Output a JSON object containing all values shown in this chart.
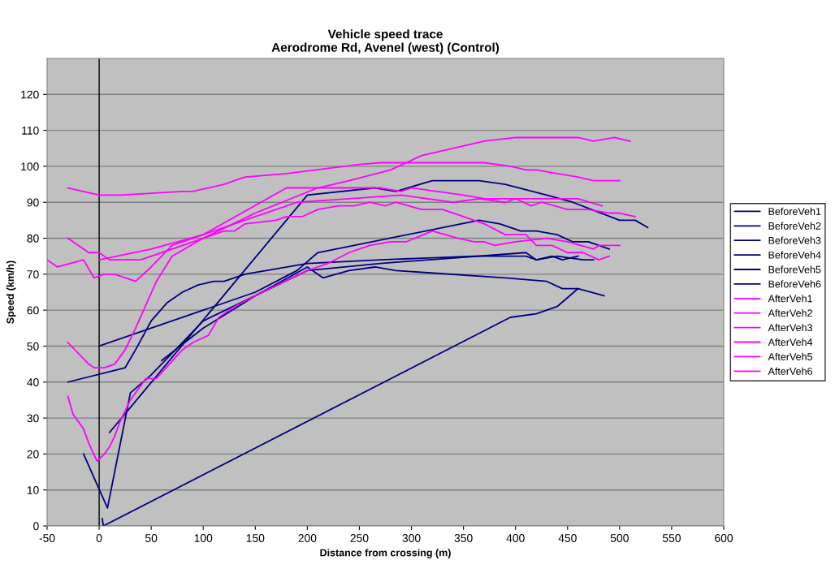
{
  "chart_data": {
    "type": "line",
    "title": "Vehicle speed trace\nAerodrome Rd, Avenel (west) (Control)",
    "xlabel": "Distance from crossing (m)",
    "ylabel": "Speed (km/h)",
    "xlim": [
      -50,
      600
    ],
    "xticks": [
      -50,
      0,
      50,
      100,
      150,
      200,
      250,
      300,
      350,
      400,
      450,
      500,
      550,
      600
    ],
    "ylim": [
      0,
      130
    ],
    "yticks": [
      0,
      10,
      20,
      30,
      40,
      50,
      60,
      70,
      80,
      90,
      100,
      110,
      120
    ],
    "grid": "y",
    "legend": "right",
    "marker": "none",
    "line_style": "solid",
    "ref_lines": [
      {
        "axis": "x",
        "value": 0,
        "color": "#000000"
      }
    ],
    "series": [
      {
        "name": "BeforeVeh1",
        "color": "#000080",
        "x": [
          -15,
          8,
          30,
          50,
          100,
          150,
          200,
          215,
          240,
          265,
          285,
          390,
          430,
          445,
          460,
          485
        ],
        "values": [
          20,
          5,
          37,
          42,
          57,
          64,
          72,
          69,
          71,
          72,
          71,
          69,
          68,
          66,
          66,
          64
        ]
      },
      {
        "name": "BeforeVeh2",
        "color": "#000080",
        "x": [
          3,
          4,
          395,
          420,
          440,
          460
        ],
        "values": [
          2,
          0,
          58,
          59,
          61,
          66
        ]
      },
      {
        "name": "BeforeVeh3",
        "color": "#000080",
        "x": [
          10,
          200,
          265,
          285,
          320,
          365,
          390,
          430,
          455,
          500,
          515,
          527
        ],
        "values": [
          26,
          92,
          94,
          93,
          96,
          96,
          95,
          92,
          90,
          85,
          85,
          83
        ]
      },
      {
        "name": "BeforeVeh4",
        "color": "#000080",
        "x": [
          -30,
          25,
          35,
          50,
          65,
          80,
          95,
          110,
          120,
          140,
          200,
          270,
          360,
          410,
          420,
          440,
          465,
          475
        ],
        "values": [
          40,
          44,
          49,
          57,
          62,
          65,
          67,
          68,
          68,
          70,
          73,
          74,
          75,
          75,
          74,
          75,
          74,
          74
        ]
      },
      {
        "name": "BeforeVeh5",
        "color": "#000080",
        "x": [
          0,
          100,
          150,
          190,
          210,
          365,
          385,
          405,
          420,
          440,
          455,
          470,
          490
        ],
        "values": [
          50,
          60,
          65,
          71,
          76,
          85,
          84,
          82,
          82,
          81,
          79,
          79,
          77
        ]
      },
      {
        "name": "BeforeVeh6",
        "color": "#000080",
        "x": [
          60,
          100,
          150,
          200,
          270,
          410,
          420,
          435,
          445,
          460
        ],
        "values": [
          46,
          55,
          64,
          71,
          73,
          76,
          74,
          75,
          74,
          75
        ]
      },
      {
        "name": "AfterVeh1",
        "color": "#ff00ff",
        "x": [
          -30,
          0,
          20,
          80,
          90,
          120,
          140,
          180,
          250,
          270,
          370,
          395,
          410,
          420,
          440,
          460,
          475,
          500
        ],
        "values": [
          94,
          92,
          92,
          93,
          93,
          95,
          97,
          98,
          100.5,
          101,
          101,
          100,
          99,
          99,
          98,
          97,
          96,
          96
        ]
      },
      {
        "name": "AfterVeh2",
        "color": "#ff00ff",
        "x": [
          -50,
          -40,
          -15,
          -5,
          5,
          15,
          35,
          50,
          70,
          100,
          180,
          270,
          290,
          300,
          350,
          370,
          430,
          460,
          483
        ],
        "values": [
          74,
          72,
          74,
          69,
          70,
          70,
          68,
          72,
          78,
          81,
          94,
          94,
          93,
          94,
          92,
          91,
          91,
          91,
          89
        ]
      },
      {
        "name": "AfterVeh3",
        "color": "#ff00ff",
        "x": [
          -30,
          -10,
          0,
          10,
          40,
          50,
          70,
          100,
          150,
          210,
          240,
          280,
          310,
          370,
          400,
          460,
          475,
          495,
          510
        ],
        "values": [
          80,
          76,
          76,
          74,
          74,
          75,
          77,
          80,
          87,
          94,
          96,
          99,
          103,
          107,
          108,
          108,
          107,
          108,
          107
        ]
      },
      {
        "name": "AfterVeh4",
        "color": "#ff00ff",
        "x": [
          0,
          50,
          100,
          150,
          190,
          240,
          290,
          340,
          365,
          390,
          400,
          415,
          425,
          450,
          470,
          490,
          500,
          515
        ],
        "values": [
          74,
          77,
          81,
          86,
          90,
          91,
          92,
          90,
          91,
          90,
          91,
          89,
          90,
          88,
          88,
          87,
          87,
          86
        ]
      },
      {
        "name": "AfterVeh5",
        "color": "#ff00ff",
        "x": [
          -30,
          -20,
          -10,
          -5,
          5,
          15,
          25,
          35,
          55,
          70,
          100,
          120,
          130,
          140,
          170,
          180,
          195,
          210,
          230,
          245,
          260,
          275,
          285,
          310,
          330,
          350,
          370,
          390,
          410,
          420,
          435,
          450,
          465,
          480,
          490
        ],
        "values": [
          51,
          48,
          45,
          44,
          44,
          45,
          49,
          55,
          68,
          75,
          80,
          82,
          82,
          84,
          85,
          86,
          86,
          88,
          89,
          89,
          90,
          89,
          90,
          88,
          88,
          86,
          84,
          81,
          81,
          78,
          78,
          76,
          76,
          74,
          75
        ]
      },
      {
        "name": "AfterVeh6",
        "color": "#ff00ff",
        "x": [
          -30,
          -25,
          -15,
          -10,
          -2,
          5,
          10,
          15,
          20,
          30,
          45,
          55,
          80,
          90,
          105,
          115,
          130,
          150,
          200,
          220,
          240,
          260,
          280,
          295,
          320,
          345,
          360,
          370,
          380,
          400,
          430,
          450,
          475,
          480,
          500
        ],
        "values": [
          36,
          31,
          27,
          23,
          18,
          20,
          22,
          25,
          29,
          35,
          41,
          41,
          49,
          51,
          53,
          58,
          61,
          64,
          71,
          73,
          76,
          78,
          79,
          79,
          82,
          80,
          79,
          79,
          78,
          79,
          80,
          79,
          77,
          78,
          78
        ]
      }
    ]
  }
}
